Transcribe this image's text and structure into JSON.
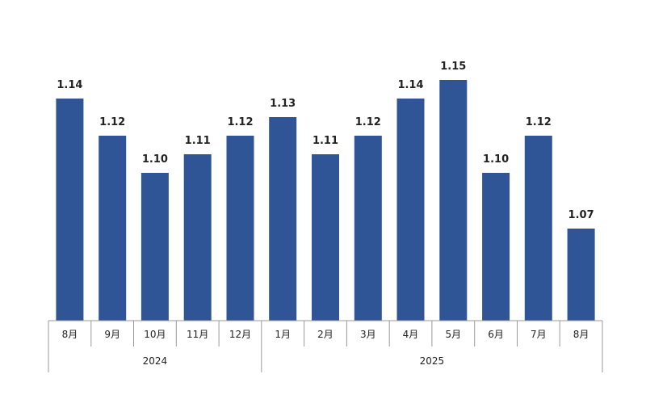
{
  "colors": {
    "bar": "#2f5597",
    "axis": "#9a9a9a",
    "text": "#222222"
  },
  "chart_data": {
    "type": "bar",
    "categories": [
      "8月",
      "9月",
      "10月",
      "11月",
      "12月",
      "1月",
      "2月",
      "3月",
      "4月",
      "5月",
      "6月",
      "7月",
      "8月"
    ],
    "values": [
      1.14,
      1.12,
      1.1,
      1.11,
      1.12,
      1.13,
      1.11,
      1.12,
      1.14,
      1.15,
      1.1,
      1.12,
      1.07
    ],
    "value_labels": [
      "1.14",
      "1.12",
      "1.10",
      "1.11",
      "1.12",
      "1.13",
      "1.11",
      "1.12",
      "1.14",
      "1.15",
      "1.10",
      "1.12",
      "1.07"
    ],
    "groups": [
      {
        "label": "2024",
        "count": 5
      },
      {
        "label": "2025",
        "count": 8
      }
    ],
    "title": "",
    "xlabel": "",
    "ylabel": "",
    "y_axis_visible": false,
    "gridlines": false,
    "data_labels": true
  }
}
